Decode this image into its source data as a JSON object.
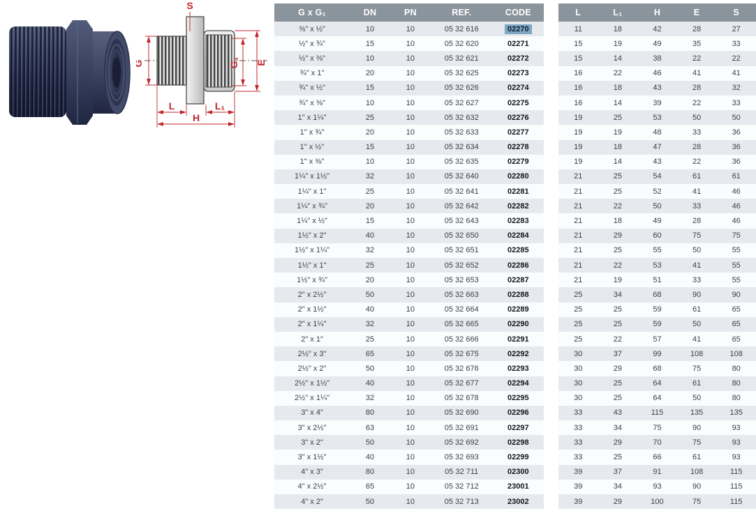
{
  "diagram": {
    "dimension_labels": {
      "s": "S",
      "g": "G",
      "g1": "G₁",
      "e": "E",
      "l": "L",
      "l1": "L₁",
      "h": "H"
    },
    "annotation_color": "#c2262e"
  },
  "left_table": {
    "headers": [
      "G x G₁",
      "DN",
      "PN",
      "REF.",
      "CODE"
    ],
    "bold_columns": [
      4
    ],
    "highlight": {
      "row": 0,
      "col": 4,
      "value": "02270",
      "color": "#7ca6c2"
    },
    "rows": [
      [
        "⅜\" x ½\"",
        "10",
        "10",
        "05 32 616",
        "02270"
      ],
      [
        "½\" x ¾\"",
        "15",
        "10",
        "05 32 620",
        "02271"
      ],
      [
        "½\" x ⅜\"",
        "10",
        "10",
        "05 32 621",
        "02272"
      ],
      [
        "¾\" x 1\"",
        "20",
        "10",
        "05 32 625",
        "02273"
      ],
      [
        "¾\" x ½\"",
        "15",
        "10",
        "05 32 626",
        "02274"
      ],
      [
        "¾\" x ⅜\"",
        "10",
        "10",
        "05 32 627",
        "02275"
      ],
      [
        "1\" x 1¼\"",
        "25",
        "10",
        "05 32 632",
        "02276"
      ],
      [
        "1\" x ¾\"",
        "20",
        "10",
        "05 32 633",
        "02277"
      ],
      [
        "1\" x ½\"",
        "15",
        "10",
        "05 32 634",
        "02278"
      ],
      [
        "1\" x ⅜\"",
        "10",
        "10",
        "05 32 635",
        "02279"
      ],
      [
        "1¼\" x 1½\"",
        "32",
        "10",
        "05 32 640",
        "02280"
      ],
      [
        "1¼\" x 1\"",
        "25",
        "10",
        "05 32 641",
        "02281"
      ],
      [
        "1¼\" x ¾\"",
        "20",
        "10",
        "05 32 642",
        "02282"
      ],
      [
        "1¼\" x ½\"",
        "15",
        "10",
        "05 32 643",
        "02283"
      ],
      [
        "1½\" x 2\"",
        "40",
        "10",
        "05 32 650",
        "02284"
      ],
      [
        "1½\" x 1¼\"",
        "32",
        "10",
        "05 32 651",
        "02285"
      ],
      [
        "1½\" x 1\"",
        "25",
        "10",
        "05 32 652",
        "02286"
      ],
      [
        "1½\" x ¾\"",
        "20",
        "10",
        "05 32 653",
        "02287"
      ],
      [
        "2\" x 2½\"",
        "50",
        "10",
        "05 32 663",
        "02288"
      ],
      [
        "2\" x 1½\"",
        "40",
        "10",
        "05 32 664",
        "02289"
      ],
      [
        "2\" x 1¼\"",
        "32",
        "10",
        "05 32 665",
        "02290"
      ],
      [
        "2\" x 1\"",
        "25",
        "10",
        "05 32 666",
        "02291"
      ],
      [
        "2½\" x 3\"",
        "65",
        "10",
        "05 32 675",
        "02292"
      ],
      [
        "2½\" x 2\"",
        "50",
        "10",
        "05 32 676",
        "02293"
      ],
      [
        "2½\" x 1½\"",
        "40",
        "10",
        "05 32 677",
        "02294"
      ],
      [
        "2½\" x 1¼\"",
        "32",
        "10",
        "05 32 678",
        "02295"
      ],
      [
        "3\" x 4\"",
        "80",
        "10",
        "05 32 690",
        "02296"
      ],
      [
        "3\" x 2½\"",
        "63",
        "10",
        "05 32 691",
        "02297"
      ],
      [
        "3\" x 2\"",
        "50",
        "10",
        "05 32 692",
        "02298"
      ],
      [
        "3\" x 1½\"",
        "40",
        "10",
        "05 32 693",
        "02299"
      ],
      [
        "4\" x 3\"",
        "80",
        "10",
        "05 32 711",
        "02300"
      ],
      [
        "4\" x 2½\"",
        "65",
        "10",
        "05 32 712",
        "23001"
      ],
      [
        "4\" x 2\"",
        "50",
        "10",
        "05 32 713",
        "23002"
      ]
    ]
  },
  "right_table": {
    "headers": [
      "L",
      "L₁",
      "H",
      "E",
      "S"
    ],
    "rows": [
      [
        "11",
        "18",
        "42",
        "28",
        "27"
      ],
      [
        "15",
        "19",
        "49",
        "35",
        "33"
      ],
      [
        "15",
        "14",
        "38",
        "22",
        "22"
      ],
      [
        "16",
        "22",
        "46",
        "41",
        "41"
      ],
      [
        "16",
        "18",
        "43",
        "28",
        "32"
      ],
      [
        "16",
        "14",
        "39",
        "22",
        "33"
      ],
      [
        "19",
        "25",
        "53",
        "50",
        "50"
      ],
      [
        "19",
        "19",
        "48",
        "33",
        "36"
      ],
      [
        "19",
        "18",
        "47",
        "28",
        "36"
      ],
      [
        "19",
        "14",
        "43",
        "22",
        "36"
      ],
      [
        "21",
        "25",
        "54",
        "61",
        "61"
      ],
      [
        "21",
        "25",
        "52",
        "41",
        "46"
      ],
      [
        "21",
        "22",
        "50",
        "33",
        "46"
      ],
      [
        "21",
        "18",
        "49",
        "28",
        "46"
      ],
      [
        "21",
        "29",
        "60",
        "75",
        "75"
      ],
      [
        "21",
        "25",
        "55",
        "50",
        "55"
      ],
      [
        "21",
        "22",
        "53",
        "41",
        "55"
      ],
      [
        "21",
        "19",
        "51",
        "33",
        "55"
      ],
      [
        "25",
        "34",
        "68",
        "90",
        "90"
      ],
      [
        "25",
        "25",
        "59",
        "61",
        "65"
      ],
      [
        "25",
        "25",
        "59",
        "50",
        "65"
      ],
      [
        "25",
        "22",
        "57",
        "41",
        "65"
      ],
      [
        "30",
        "37",
        "99",
        "108",
        "108"
      ],
      [
        "30",
        "29",
        "68",
        "75",
        "80"
      ],
      [
        "30",
        "25",
        "64",
        "61",
        "80"
      ],
      [
        "30",
        "25",
        "64",
        "50",
        "80"
      ],
      [
        "33",
        "43",
        "115",
        "135",
        "135"
      ],
      [
        "33",
        "34",
        "75",
        "90",
        "93"
      ],
      [
        "33",
        "29",
        "70",
        "75",
        "93"
      ],
      [
        "33",
        "25",
        "66",
        "61",
        "93"
      ],
      [
        "39",
        "37",
        "91",
        "108",
        "115"
      ],
      [
        "39",
        "34",
        "93",
        "90",
        "115"
      ],
      [
        "39",
        "29",
        "100",
        "75",
        "115"
      ]
    ]
  },
  "colors": {
    "table_header_bg": "#8a949c",
    "table_header_text": "#ffffff",
    "row_alt_bg": "#e6eaee",
    "row_bg": "#fbfcfd",
    "code_highlight_bg": "#7ca6c2",
    "diagram_red": "#c2262e",
    "product_navy": "#323a58"
  }
}
